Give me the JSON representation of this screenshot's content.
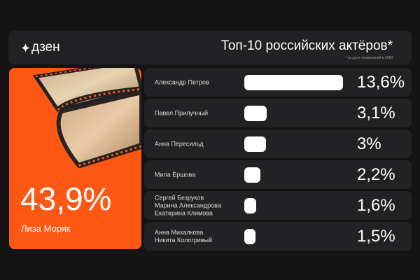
{
  "header": {
    "logo": "дзен",
    "logo_icon": "sparkle-icon",
    "title": "Топ-10 российских актёров*",
    "note": "* по доле упоминаний в СМИ"
  },
  "leader": {
    "value": "43,9%",
    "name": "Лиза Моряк",
    "image": "film-reel-icon",
    "color": "#ff5714"
  },
  "rows": [
    {
      "label": "Александр Петров",
      "pct": "13,6%",
      "value": 13.6
    },
    {
      "label": "Павел Прилучный",
      "pct": "3,1%",
      "value": 3.1
    },
    {
      "label": "Анна Пересильд",
      "pct": "3%",
      "value": 3.0
    },
    {
      "label": "Мила Ершова",
      "pct": "2,2%",
      "value": 2.2
    },
    {
      "label": "Сергей Безруков\nМарина Александрова\nЕкатерина Климова",
      "pct": "1,6%",
      "value": 1.6
    },
    {
      "label": "Анна Михалкова\nНикита Кологривый",
      "pct": "1,5%",
      "value": 1.5
    }
  ]
}
